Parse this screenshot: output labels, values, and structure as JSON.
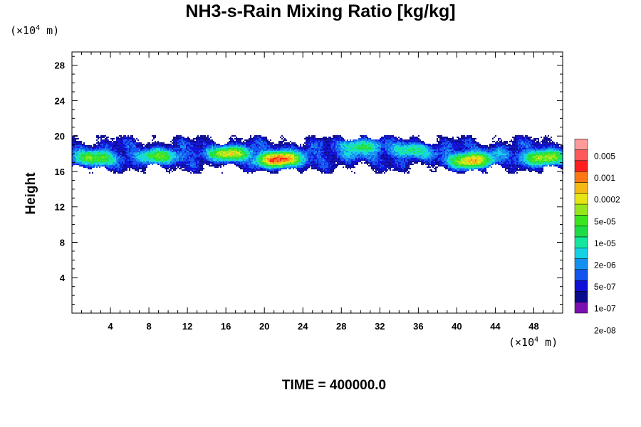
{
  "chart_data": {
    "type": "heatmap",
    "title": "NH3-s-Rain Mixing Ratio [kg/kg]",
    "ylabel": "Height",
    "xlabel": "",
    "x_unit": {
      "prefix": "(×10",
      "exp": "4",
      "suffix": " m)"
    },
    "y_unit": {
      "prefix": "(×10",
      "exp": "4",
      "suffix": " m)"
    },
    "xlim": [
      0,
      51
    ],
    "ylim": [
      0,
      29.5
    ],
    "x_ticks": [
      4,
      8,
      12,
      16,
      20,
      24,
      28,
      32,
      36,
      40,
      44,
      48
    ],
    "y_ticks": [
      4,
      8,
      12,
      16,
      20,
      24,
      28
    ],
    "colorbar": {
      "colors": [
        "#7b0fb0",
        "#0a0a8c",
        "#0f0fd8",
        "#1055f0",
        "#1490f0",
        "#14d2e6",
        "#14e6a0",
        "#1edc46",
        "#3ce61e",
        "#96e61e",
        "#e6e614",
        "#f5b914",
        "#ff7814",
        "#ff1e1e",
        "#ff5a5a",
        "#ff9b9b"
      ],
      "labels": [
        "0.005",
        "0.001",
        "0.0002",
        "5e-05",
        "1e-05",
        "2e-06",
        "5e-07",
        "1e-07",
        "2e-08"
      ]
    },
    "cloud_band": {
      "y_range": [
        16.2,
        19.8
      ],
      "cores": [
        {
          "x": 21.5,
          "y": 17.3,
          "level": 12
        },
        {
          "x": 41.5,
          "y": 17.2,
          "level": 10
        },
        {
          "x": 16.5,
          "y": 18.0,
          "level": 8
        },
        {
          "x": 30.0,
          "y": 18.9,
          "level": 6
        },
        {
          "x": 2.5,
          "y": 17.4,
          "level": 7
        },
        {
          "x": 49.0,
          "y": 17.5,
          "level": 8
        },
        {
          "x": 9.0,
          "y": 17.6,
          "level": 6
        },
        {
          "x": 35.0,
          "y": 18.5,
          "level": 5
        }
      ]
    }
  },
  "footer": {
    "time": "TIME = 400000.0"
  }
}
